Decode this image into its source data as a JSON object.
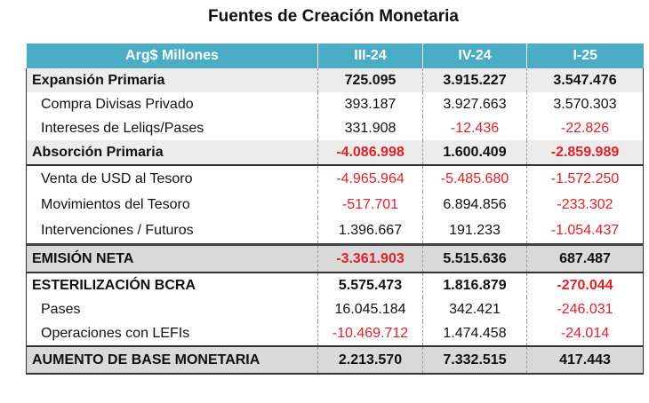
{
  "title": "Fuentes de Creación Monetaria",
  "header": [
    "Arg$ Millones",
    "III-24",
    "IV-24",
    "I-25"
  ],
  "rows": [
    {
      "label": "Expansión Primaria",
      "values": [
        "725.095",
        "3.915.227",
        "3.547.476"
      ]
    },
    {
      "label": "Compra Divisas Privado",
      "values": [
        "393.187",
        "3.927.663",
        "3.570.303"
      ]
    },
    {
      "label": "Intereses de Leliqs/Pases",
      "values": [
        "331.908",
        "-12.436",
        "-22.826"
      ]
    },
    {
      "label": "Absorción Primaria",
      "values": [
        "-4.086.998",
        "1.600.409",
        "-2.859.989"
      ]
    },
    {
      "label": "Venta de USD al Tesoro",
      "values": [
        "-4.965.964",
        "-5.485.680",
        "-1.572.250"
      ]
    },
    {
      "label": "Movimientos del Tesoro",
      "values": [
        "-517.701",
        "6.894.856",
        "-233.302"
      ]
    },
    {
      "label": "Intervenciones / Futuros",
      "values": [
        "1.396.667",
        "191.233",
        "-1.054.437"
      ]
    },
    {
      "label": "EMISIÓN NETA",
      "values": [
        "-3.361.903",
        "5.515.636",
        "687.487"
      ]
    },
    {
      "label": "ESTERILIZACIÓN BCRA",
      "values": [
        "5.575.473",
        "1.816.879",
        "-270.044"
      ]
    },
    {
      "label": "Pases",
      "values": [
        "16.045.184",
        "342.421",
        "-246.031"
      ]
    },
    {
      "label": "Operaciones con LEFIs",
      "values": [
        "-10.469.712",
        "1.474.458",
        "-24.014"
      ]
    },
    {
      "label": "AUMENTO DE BASE MONETARIA",
      "values": [
        "2.213.570",
        "7.332.515",
        "417.443"
      ]
    }
  ],
  "colors": {
    "header": "#4bacc6",
    "negative": "#e0202a"
  }
}
